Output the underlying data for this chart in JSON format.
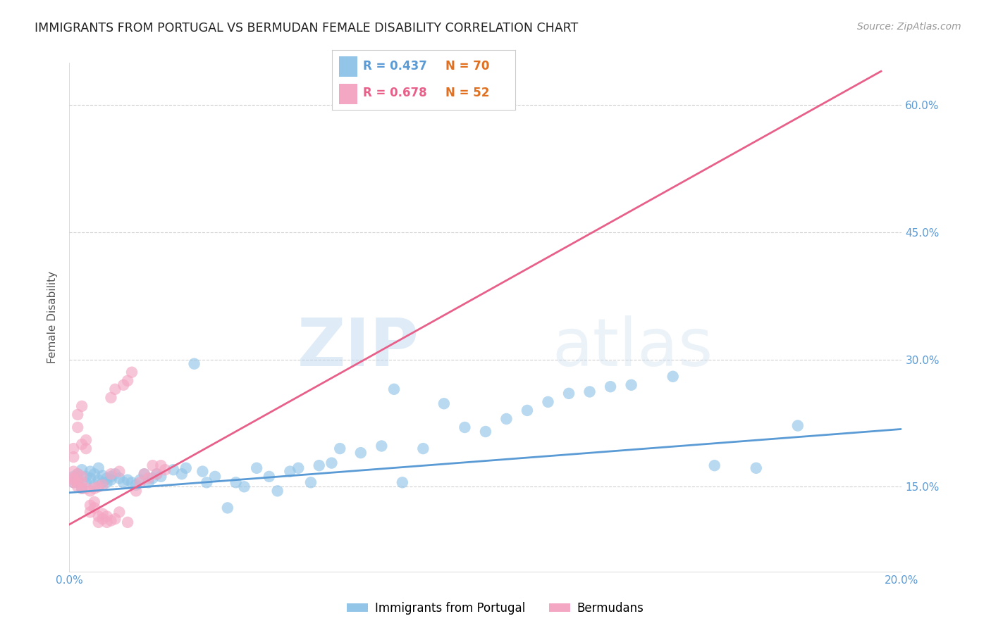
{
  "title": "IMMIGRANTS FROM PORTUGAL VS BERMUDAN FEMALE DISABILITY CORRELATION CHART",
  "source": "Source: ZipAtlas.com",
  "ylabel_label": "Female Disability",
  "watermark": "ZIPatlas",
  "x_min": 0.0,
  "x_max": 0.2,
  "y_min": 0.05,
  "y_max": 0.65,
  "x_ticks": [
    0.0,
    0.04,
    0.08,
    0.12,
    0.16,
    0.2
  ],
  "x_tick_labels": [
    "0.0%",
    "",
    "",
    "",
    "",
    "20.0%"
  ],
  "y_ticks": [
    0.15,
    0.3,
    0.45,
    0.6
  ],
  "y_tick_labels": [
    "15.0%",
    "30.0%",
    "45.0%",
    "60.0%"
  ],
  "blue_color": "#92c5e8",
  "blue_color_dark": "#5b9bd5",
  "pink_color": "#f4a7c3",
  "pink_color_dark": "#e8608a",
  "legend_R_blue": "R = 0.437",
  "legend_N_blue": "N = 70",
  "legend_R_pink": "R = 0.678",
  "legend_N_pink": "N = 52",
  "legend_label_blue": "Immigrants from Portugal",
  "legend_label_pink": "Bermudans",
  "blue_line_x": [
    0.0,
    0.2
  ],
  "blue_line_y": [
    0.143,
    0.218
  ],
  "pink_line_x": [
    -0.002,
    0.195
  ],
  "pink_line_y": [
    0.1,
    0.64
  ],
  "blue_scatter_x": [
    0.001,
    0.001,
    0.002,
    0.002,
    0.003,
    0.003,
    0.004,
    0.004,
    0.005,
    0.005,
    0.006,
    0.006,
    0.007,
    0.007,
    0.008,
    0.008,
    0.009,
    0.009,
    0.01,
    0.01,
    0.011,
    0.012,
    0.013,
    0.014,
    0.015,
    0.016,
    0.017,
    0.018,
    0.019,
    0.02,
    0.021,
    0.022,
    0.025,
    0.027,
    0.028,
    0.03,
    0.032,
    0.033,
    0.035,
    0.038,
    0.04,
    0.042,
    0.045,
    0.048,
    0.05,
    0.053,
    0.055,
    0.058,
    0.06,
    0.063,
    0.065,
    0.07,
    0.075,
    0.078,
    0.08,
    0.085,
    0.09,
    0.095,
    0.1,
    0.105,
    0.11,
    0.115,
    0.12,
    0.125,
    0.13,
    0.135,
    0.145,
    0.155,
    0.165,
    0.175
  ],
  "blue_scatter_y": [
    0.155,
    0.162,
    0.158,
    0.165,
    0.148,
    0.17,
    0.155,
    0.162,
    0.16,
    0.168,
    0.152,
    0.165,
    0.158,
    0.172,
    0.155,
    0.163,
    0.16,
    0.155,
    0.158,
    0.162,
    0.165,
    0.16,
    0.155,
    0.158,
    0.155,
    0.152,
    0.158,
    0.165,
    0.155,
    0.16,
    0.165,
    0.162,
    0.17,
    0.165,
    0.172,
    0.295,
    0.168,
    0.155,
    0.162,
    0.125,
    0.155,
    0.15,
    0.172,
    0.162,
    0.145,
    0.168,
    0.172,
    0.155,
    0.175,
    0.178,
    0.195,
    0.19,
    0.198,
    0.265,
    0.155,
    0.195,
    0.248,
    0.22,
    0.215,
    0.23,
    0.24,
    0.25,
    0.26,
    0.262,
    0.268,
    0.27,
    0.28,
    0.175,
    0.172,
    0.222
  ],
  "pink_scatter_x": [
    0.001,
    0.001,
    0.001,
    0.001,
    0.001,
    0.001,
    0.002,
    0.002,
    0.002,
    0.002,
    0.003,
    0.003,
    0.003,
    0.003,
    0.004,
    0.004,
    0.005,
    0.005,
    0.006,
    0.006,
    0.007,
    0.007,
    0.008,
    0.008,
    0.009,
    0.01,
    0.01,
    0.011,
    0.012,
    0.013,
    0.014,
    0.015,
    0.016,
    0.017,
    0.018,
    0.019,
    0.02,
    0.021,
    0.022,
    0.023,
    0.004,
    0.006,
    0.008,
    0.01,
    0.012,
    0.014,
    0.002,
    0.003,
    0.005,
    0.007,
    0.009,
    0.011
  ],
  "pink_scatter_y": [
    0.158,
    0.168,
    0.155,
    0.16,
    0.185,
    0.195,
    0.22,
    0.235,
    0.155,
    0.165,
    0.2,
    0.245,
    0.155,
    0.162,
    0.195,
    0.205,
    0.12,
    0.128,
    0.125,
    0.132,
    0.108,
    0.115,
    0.112,
    0.118,
    0.108,
    0.165,
    0.255,
    0.265,
    0.168,
    0.27,
    0.275,
    0.285,
    0.145,
    0.155,
    0.165,
    0.16,
    0.175,
    0.165,
    0.175,
    0.17,
    0.148,
    0.148,
    0.152,
    0.11,
    0.12,
    0.108,
    0.15,
    0.148,
    0.145,
    0.15,
    0.115,
    0.112
  ],
  "background_color": "#ffffff",
  "grid_color": "#d0d0d0",
  "title_color": "#222222",
  "source_color": "#999999"
}
